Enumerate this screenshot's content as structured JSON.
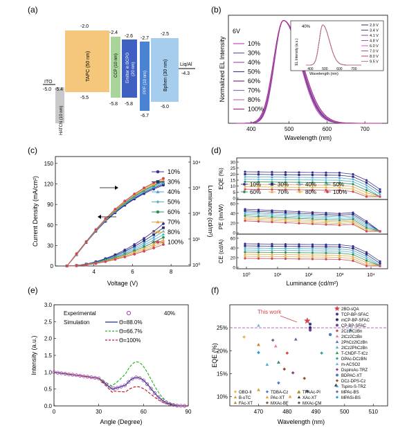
{
  "panel_labels": [
    "(a)",
    "(b)",
    "(c)",
    "(d)",
    "(e)",
    "(f)"
  ],
  "panel_a": {
    "layers": [
      {
        "name": "ITO",
        "homo": -5.0,
        "color": "#ffffff"
      },
      {
        "name": "HATCN (10 nm)",
        "homo": -5.4,
        "lumo": null,
        "color": "#c7c7c7"
      },
      {
        "name": "TAPC (50 nm)",
        "lumo": -2.0,
        "homo": -5.5,
        "color": "#f5c77b"
      },
      {
        "name": "CCP (10 nm)",
        "lumo": -2.4,
        "homo": -5.8,
        "color": "#a9d59b"
      },
      {
        "name": "Emitter in BCPO (20 nm)",
        "lumo": -2.6,
        "homo": -5.8,
        "color": "#3f5fc3"
      },
      {
        "name": "PPF (10 nm)",
        "lumo": -2.7,
        "homo": -6.7,
        "color": "#4a82d4"
      },
      {
        "name": "Bphen (30 nm)",
        "lumo": -2.5,
        "homo": -6.0,
        "color": "#a6cdee"
      },
      {
        "name": "Liq/Al",
        "homo": -4.3
      }
    ],
    "labels": {
      "ito": "ITO",
      "ito_val": "-5.0",
      "hatcn_val": "-5.4",
      "hatcn": "HATCN (10 nm)",
      "tapc": "TAPC (50 nm)",
      "tapc_top": "-2.0",
      "tapc_bot": "-5.5",
      "ccp": "CCP (10 nm)",
      "ccp_top": "-2.4",
      "ccp_bot": "-5.8",
      "emitter": "Emitter in BCPO",
      "emitter2": "(20 nm)",
      "em_top": "-2.6",
      "em_bot": "-5.8",
      "ppf": "PPF (10 nm)",
      "ppf_top": "-2.7",
      "ppf_bot": "-6.7",
      "bphen": "Bphen (30 nm)",
      "bphen_top": "-2.5",
      "bphen_bot": "-6.0",
      "liq": "Liq/Al",
      "liq_val": "-4.3"
    }
  },
  "chart_data": [
    {
      "panel": "b",
      "type": "line",
      "xlabel": "Wavelength (nm)",
      "ylabel": "Normalized EL Intensity",
      "xticks": [
        "400",
        "500",
        "600",
        "700"
      ],
      "xlim": [
        340,
        760
      ],
      "ylim": [
        0,
        1.05
      ],
      "annotation": "6V",
      "peak_nm": 485,
      "series": [
        {
          "name": "10%",
          "color": "#d040c8",
          "fwhm": 70
        },
        {
          "name": "30%",
          "color": "#6b5a9e",
          "fwhm": 72
        },
        {
          "name": "40%",
          "color": "#b04fb8",
          "fwhm": 73
        },
        {
          "name": "50%",
          "color": "#4a3f87",
          "fwhm": 74
        },
        {
          "name": "60%",
          "color": "#7a2f7a",
          "fwhm": 75
        },
        {
          "name": "70%",
          "color": "#8a6fbf",
          "fwhm": 76
        },
        {
          "name": "80%",
          "color": "#c06cc0",
          "fwhm": 77
        },
        {
          "name": "100%",
          "color": "#b02585",
          "fwhm": 79
        }
      ],
      "inset": {
        "annotation": "40%",
        "xlabel": "Wavelength (nm)",
        "ylabel": "EL Intensity (a.u.)",
        "xticks": [
          "400",
          "500",
          "600",
          "700"
        ],
        "legend": [
          "2.9 V",
          "3.4 V",
          "4.1 V",
          "4.8 V",
          "6.0 V",
          "7.0 V",
          "8.0 V",
          "9.5 V"
        ],
        "colors": [
          "#2d2d6b",
          "#5a3c8a",
          "#7b4aa1",
          "#9d57b4",
          "#c064c3",
          "#b94a86",
          "#a94468",
          "#c07a8a"
        ]
      }
    },
    {
      "panel": "c",
      "type": "line",
      "xlabel": "Voltage (V)",
      "ylabel": "Current Density (mA/cm²)",
      "y2label": "Luminance (cd/m²)",
      "xticks": [
        "4",
        "6",
        "8"
      ],
      "yticks": [
        "0",
        "30",
        "60",
        "90",
        "120",
        "150"
      ],
      "y2ticks": [
        "10⁰",
        "10¹",
        "10²",
        "10³",
        "10⁴"
      ],
      "xlim": [
        2,
        9
      ],
      "ylim": [
        0,
        160
      ],
      "series": [
        {
          "name": "10%",
          "color": "#3a2f9a",
          "marker": "circle"
        },
        {
          "name": "30%",
          "color": "#2a2f6e",
          "marker": "square"
        },
        {
          "name": "40%",
          "color": "#4e9fd9",
          "marker": "triangle"
        },
        {
          "name": "50%",
          "color": "#4eb4c2",
          "marker": "diamond"
        },
        {
          "name": "60%",
          "color": "#2f8f5a",
          "marker": "circle"
        },
        {
          "name": "70%",
          "color": "#e8a04a",
          "marker": "triangle"
        },
        {
          "name": "80%",
          "color": "#d9b33a",
          "marker": "star"
        },
        {
          "name": "100%",
          "color": "#d0455a",
          "marker": "circle"
        }
      ]
    },
    {
      "panel": "d",
      "type": "line",
      "xlabel": "Luminance (cd/m²)",
      "subplots": [
        {
          "ylabel": "EQE (%)",
          "yticks": [
            "0",
            "5",
            "10",
            "15",
            "20",
            "25",
            "30"
          ]
        },
        {
          "ylabel": "PE (lm/W)",
          "yticks": [
            "0",
            "20",
            "40",
            "60"
          ]
        },
        {
          "ylabel": "CE (cd/A)",
          "yticks": [
            "0",
            "20",
            "40",
            "60"
          ]
        }
      ],
      "xticks": [
        "10⁰",
        "10¹",
        "10²",
        "10³",
        "10⁴"
      ],
      "legend": [
        "10%",
        "30%",
        "40%",
        "50%",
        "60%",
        "70%",
        "80%",
        "100%"
      ]
    },
    {
      "panel": "e",
      "type": "line",
      "xlabel": "Angle (Degree)",
      "ylabel": "Intensity (a.u.)",
      "xticks": [
        "0",
        "30",
        "60",
        "90"
      ],
      "yticks": [
        "0.0",
        "0.5",
        "1.0",
        "1.5",
        "2.0",
        "2.5",
        "3.0"
      ],
      "xlim": [
        0,
        90
      ],
      "ylim": [
        0,
        3.0
      ],
      "annotation": "40%",
      "legend": {
        "experimental": "Experimental",
        "simulation": "Simulation",
        "s1": "Θ=88.0%",
        "s2": "Θ=66.7%",
        "s3": "Θ=100%"
      },
      "colors": {
        "exp": "#9b3fb5",
        "s1": "#1e2d7a",
        "s2": "#2bb52b",
        "s3": "#c41e2a"
      }
    },
    {
      "panel": "f",
      "type": "scatter",
      "xlabel": "Wavelength (nm)",
      "ylabel": "EQE (%)",
      "xticks": [
        "470",
        "480",
        "490",
        "500",
        "510"
      ],
      "yticks": [
        "10%",
        "15%",
        "20%",
        "25%"
      ],
      "xlim": [
        460,
        515
      ],
      "ylim": [
        8,
        30
      ],
      "annotation": "This work",
      "reference_line": 25,
      "points": [
        {
          "x": 487,
          "y": 26.5,
          "name": "2BO-sQA",
          "color": "#d9434b",
          "marker": "star"
        },
        {
          "x": 488,
          "y": 25.8,
          "name": "TCP-BP-SFAC",
          "color": "#3e3f9a",
          "marker": "circle"
        },
        {
          "x": 488,
          "y": 25.0,
          "name": "mCP-BP-SFAC",
          "color": "#2a2f6e",
          "marker": "circle"
        },
        {
          "x": 488,
          "y": 24.5,
          "name": "CP-BP-SFAC",
          "color": "#6f3fa8",
          "marker": "circle"
        },
        {
          "x": 480,
          "y": 19.5,
          "name": "2Cz2ICzBn",
          "color": "#d9434b",
          "marker": "diamond"
        },
        {
          "x": 476,
          "y": 21.0,
          "name": "2tCz2CzBn",
          "color": "#e87a9a",
          "marker": "triangle"
        },
        {
          "x": 483,
          "y": 22.5,
          "name": "2PhCz2tCzBn",
          "color": "#5a6ab0",
          "marker": "triangle"
        },
        {
          "x": 473,
          "y": 17.0,
          "name": "2tCz2PhCzBn",
          "color": "#4eb4c2",
          "marker": "triangle"
        },
        {
          "x": 477,
          "y": 17.5,
          "name": "T-CNDF-T-tCz",
          "color": "#2f8f5a",
          "marker": "triangle"
        },
        {
          "x": 492,
          "y": 19.5,
          "name": "DPAc-DCzBN",
          "color": "#3aa0a0",
          "marker": "diamond"
        },
        {
          "x": 470,
          "y": 25.5,
          "name": "m-ACSO2",
          "color": "#7ab0e0",
          "marker": "triangle"
        },
        {
          "x": 482,
          "y": 15.2,
          "name": "DspiroAc-TRZ",
          "color": "#8a3f8a",
          "marker": "diamond"
        },
        {
          "x": 495,
          "y": 23.5,
          "name": "BDPAC-XT",
          "color": "#4a7fc0",
          "marker": "circle"
        },
        {
          "x": 479,
          "y": 16.0,
          "name": "DCz-DPS-Cz",
          "color": "#9a4a2a",
          "marker": "diamond"
        },
        {
          "x": 502,
          "y": 24.5,
          "name": "Tspiro-S-TRZ",
          "color": "#4e9fd9",
          "marker": "triangle"
        },
        {
          "x": 475,
          "y": 22.3,
          "name": "MPAc-BS",
          "color": "#6a6aa0",
          "marker": "diamond"
        },
        {
          "x": 470,
          "y": 19.6,
          "name": "MPASi-BS",
          "color": "#2a9fd0",
          "marker": "diamond"
        },
        {
          "x": 465,
          "y": 23.0,
          "name": "OBO-II",
          "color": "#e8b84a",
          "marker": "diamond"
        },
        {
          "x": 470,
          "y": 11.5,
          "name": "B-oTC",
          "color": "#d0a03a",
          "marker": "triangle"
        },
        {
          "x": 470,
          "y": 21.3,
          "name": "FAc-XT",
          "color": "#c08a2a",
          "marker": "triangle"
        },
        {
          "x": 477,
          "y": 13.0,
          "name": "TDBA-Cz",
          "color": "#3f7fcf",
          "marker": "diamond"
        },
        {
          "x": 481,
          "y": 10.0,
          "name": "PAc-XT",
          "color": "#e6a040",
          "marker": "triangle"
        },
        {
          "x": 486,
          "y": 14.0,
          "name": "MXAc-BF",
          "color": "#8a5a3a",
          "marker": "diamond"
        },
        {
          "x": 484,
          "y": 11.0,
          "name": "TPAAc-PI",
          "color": "#b58a2a",
          "marker": "triangle"
        },
        {
          "x": 497,
          "y": 12.5,
          "name": "XAc-XT",
          "color": "#3a3a3a",
          "marker": "triangle"
        },
        {
          "x": 487,
          "y": 11.2,
          "name": "MXAc-CM",
          "color": "#5a5a7a",
          "marker": "diamond"
        }
      ],
      "legend_cols": {
        "col1": [
          "OBO-II",
          "B-oTC",
          "FAc-XT"
        ],
        "col2": [
          "TDBA-Cz",
          "PAc-XT",
          "MXAc-BF"
        ],
        "col3": [
          "TPAAc-PI",
          "XAc-XT",
          "MXAc-CM"
        ]
      }
    }
  ]
}
